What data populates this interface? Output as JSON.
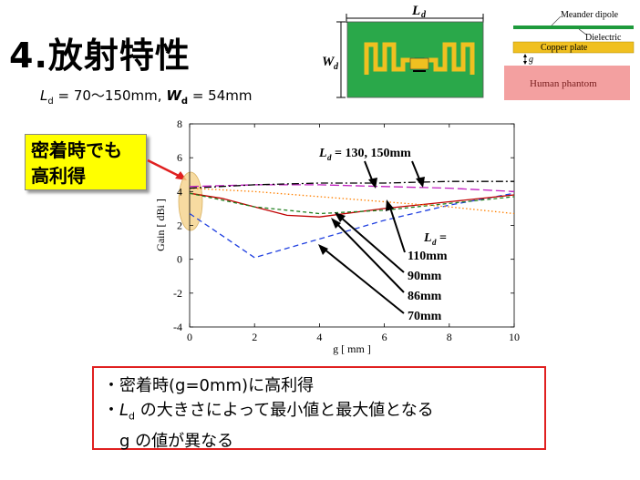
{
  "slide": {
    "title": "4.放射特性",
    "params": {
      "ld_label": "L",
      "ld_sub": "d",
      "ld_range": "= 70～150mm,",
      "wd_label": "W",
      "wd_sub": "d",
      "wd_value": "= 54mm"
    },
    "callout": {
      "line1": "密着時でも",
      "line2": "高利得"
    },
    "summary": {
      "line1": "・密着時(g=0mm)に高利得",
      "line2_prefix": "・",
      "line2_ld": "L",
      "line2_sub": "d",
      "line2_rest": " の大きさによって最小値と最大値となる",
      "line3": "g の値が異なる"
    }
  },
  "antenna_diagram": {
    "ld_label": "L",
    "ld_sub": "d",
    "wd_label": "W",
    "wd_sub": "d"
  },
  "layer_diagram": {
    "meander": "Meander dipole",
    "dielectric": "Dielectric",
    "copper": "Copper plate",
    "gap": "g",
    "phantom": "Human phantom"
  },
  "annotations": {
    "top_label": "= 130, 150mm",
    "top_ld": "L",
    "top_sub": "d",
    "right_ld": "L",
    "right_sub": "d",
    "right_eq": "=",
    "sizes": [
      "110mm",
      "90mm",
      "86mm",
      "70mm"
    ]
  },
  "colors": {
    "callout_bg": "#ffff00",
    "summary_border": "#e02020",
    "antenna_green": "#2aa84a",
    "antenna_yellow": "#f0c020",
    "phantom": "#f3a0a0",
    "dipole_green": "#1e9a3c",
    "copper": "#f0c020",
    "highlight": "#f5d28a"
  },
  "chart_data": {
    "type": "line",
    "xlabel": "g [ mm ]",
    "ylabel": "Gain [ dBi ]",
    "xlim": [
      0,
      10
    ],
    "ylim": [
      -4,
      8
    ],
    "xticks": [
      0,
      2,
      4,
      6,
      8,
      10
    ],
    "yticks": [
      -4,
      -2,
      0,
      2,
      4,
      6,
      8
    ],
    "series": [
      {
        "name": "70mm",
        "color": "#2040e0",
        "dash": "6,4",
        "x": [
          0,
          2,
          4,
          6,
          8,
          10
        ],
        "y": [
          2.7,
          0.1,
          1.2,
          2.3,
          3.2,
          3.9
        ]
      },
      {
        "name": "86mm",
        "color": "#c00000",
        "dash": "",
        "x": [
          0,
          1,
          2,
          3,
          4,
          6,
          8,
          10
        ],
        "y": [
          3.9,
          3.6,
          3.1,
          2.6,
          2.5,
          3.0,
          3.4,
          3.8
        ]
      },
      {
        "name": "90mm",
        "color": "#208020",
        "dash": "4,3",
        "x": [
          0,
          2,
          4,
          6,
          8,
          10
        ],
        "y": [
          3.9,
          3.1,
          2.7,
          2.9,
          3.3,
          3.7
        ]
      },
      {
        "name": "110mm",
        "color": "#ff8000",
        "dash": "1.5,2.5",
        "x": [
          0,
          2,
          4,
          6,
          8,
          10
        ],
        "y": [
          4.2,
          4.0,
          3.7,
          3.4,
          3.1,
          2.7
        ]
      },
      {
        "name": "130mm",
        "color": "#c020c0",
        "dash": "10,4",
        "x": [
          0,
          2,
          4,
          6,
          8,
          10
        ],
        "y": [
          4.3,
          4.4,
          4.4,
          4.3,
          4.2,
          4.0
        ]
      },
      {
        "name": "150mm",
        "color": "#000000",
        "dash": "8,3,2,3",
        "x": [
          0,
          2,
          4,
          6,
          8,
          10
        ],
        "y": [
          4.2,
          4.4,
          4.5,
          4.5,
          4.6,
          4.6
        ]
      }
    ]
  }
}
